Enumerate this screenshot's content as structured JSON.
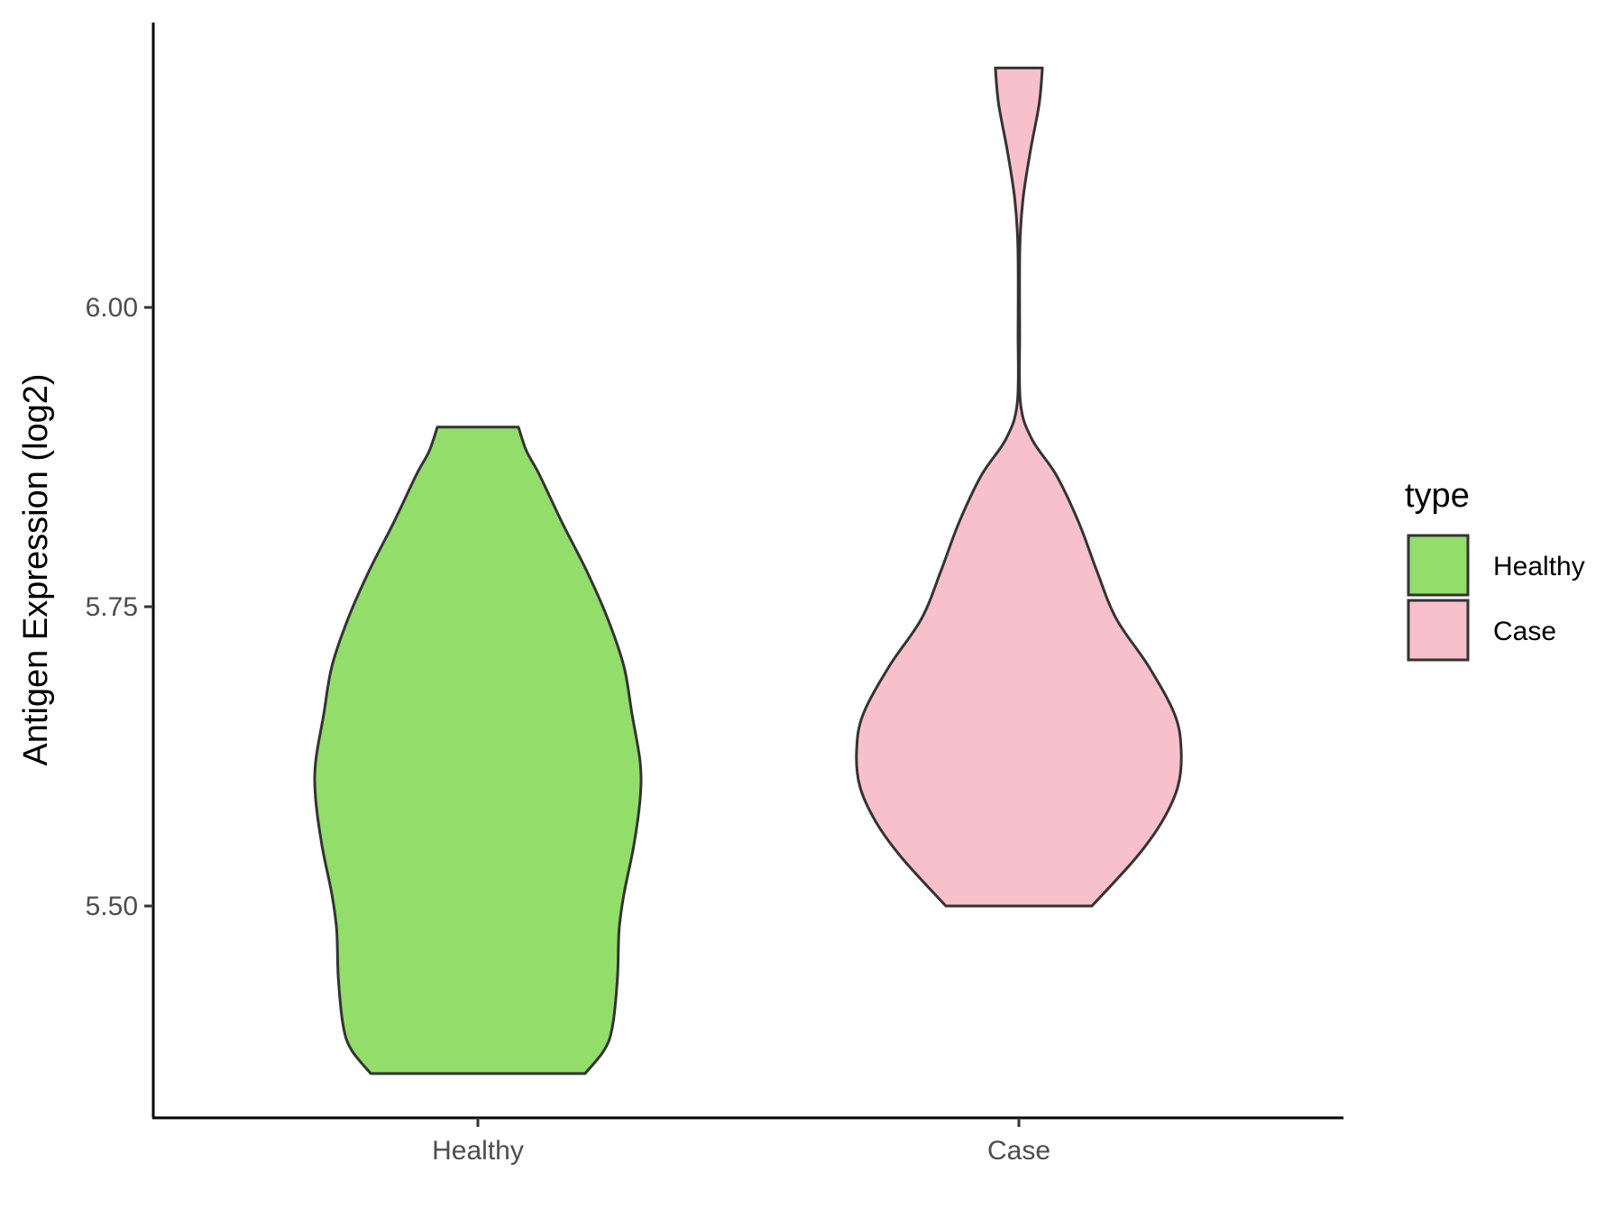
{
  "chart_data": {
    "type": "violin",
    "title": "",
    "xlabel": "",
    "ylabel": "Antigen Expression (log2)",
    "ylim": [
      5.34,
      6.26
    ],
    "yticks": [
      5.5,
      5.75,
      6.0
    ],
    "ytick_labels": [
      "5.50",
      "5.75",
      "6.00"
    ],
    "categories": [
      "Healthy",
      "Case"
    ],
    "grid": false,
    "legend": {
      "title": "type",
      "placement": "right",
      "entries": [
        "Healthy",
        "Case"
      ]
    },
    "series": [
      {
        "name": "Healthy",
        "color": "#93dd6a",
        "min": 5.36,
        "max": 5.9,
        "density_profile": [
          [
            5.36,
            0.66
          ],
          [
            5.38,
            0.78
          ],
          [
            5.4,
            0.83
          ],
          [
            5.44,
            0.86
          ],
          [
            5.48,
            0.87
          ],
          [
            5.51,
            0.9
          ],
          [
            5.55,
            0.96
          ],
          [
            5.59,
            1.0
          ],
          [
            5.62,
            1.0
          ],
          [
            5.66,
            0.95
          ],
          [
            5.7,
            0.9
          ],
          [
            5.74,
            0.8
          ],
          [
            5.78,
            0.67
          ],
          [
            5.82,
            0.52
          ],
          [
            5.86,
            0.38
          ],
          [
            5.88,
            0.3
          ],
          [
            5.9,
            0.25
          ]
        ]
      },
      {
        "name": "Case",
        "color": "#f8c0cb",
        "min": 5.5,
        "max": 6.2,
        "density_profile": [
          [
            5.5,
            0.45
          ],
          [
            5.54,
            0.72
          ],
          [
            5.57,
            0.88
          ],
          [
            5.6,
            0.98
          ],
          [
            5.63,
            1.0
          ],
          [
            5.66,
            0.96
          ],
          [
            5.7,
            0.8
          ],
          [
            5.74,
            0.6
          ],
          [
            5.78,
            0.48
          ],
          [
            5.82,
            0.37
          ],
          [
            5.86,
            0.23
          ],
          [
            5.89,
            0.08
          ],
          [
            5.92,
            0.01
          ],
          [
            5.98,
            0.005
          ],
          [
            6.05,
            0.006
          ],
          [
            6.09,
            0.025
          ],
          [
            6.13,
            0.07
          ],
          [
            6.17,
            0.125
          ],
          [
            6.2,
            0.145
          ]
        ]
      }
    ]
  }
}
